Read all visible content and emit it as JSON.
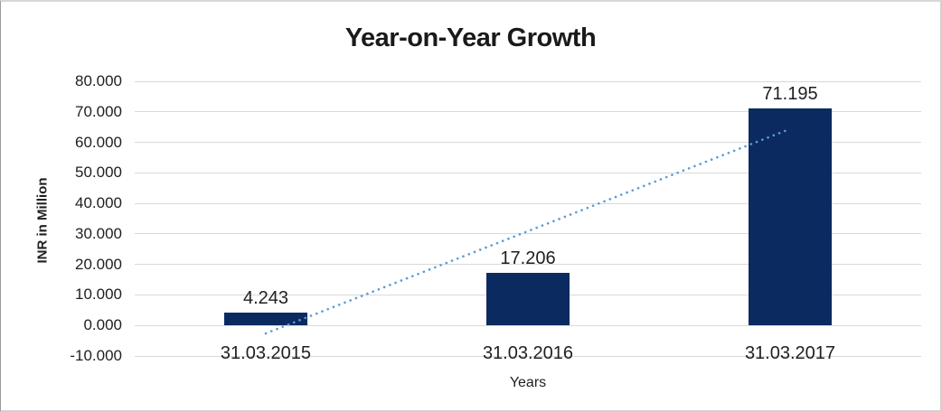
{
  "chart_data": {
    "type": "bar",
    "title": "Year-on-Year Growth",
    "xlabel": "Years",
    "ylabel": "INR in Million",
    "categories": [
      "31.03.2015",
      "31.03.2016",
      "31.03.2017"
    ],
    "values": [
      4.243,
      17.206,
      71.195
    ],
    "value_labels": [
      "4.243",
      "17.206",
      "71.195"
    ],
    "ylim": [
      -10,
      80
    ],
    "ytick_step": 10,
    "ytick_labels": [
      "80.000",
      "70.000",
      "60.000",
      "50.000",
      "40.000",
      "30.000",
      "20.000",
      "10.000",
      "0.000",
      "-10.000"
    ],
    "grid": true,
    "legend": "none",
    "bar_color": "#0B2A60",
    "gridline_color": "#D9D9D9",
    "text_color": "#1F1F1F",
    "trendline": {
      "type": "linear",
      "style": "dotted",
      "color": "#5B9BD5",
      "start_value": -2.6,
      "end_value": 64.4
    }
  }
}
